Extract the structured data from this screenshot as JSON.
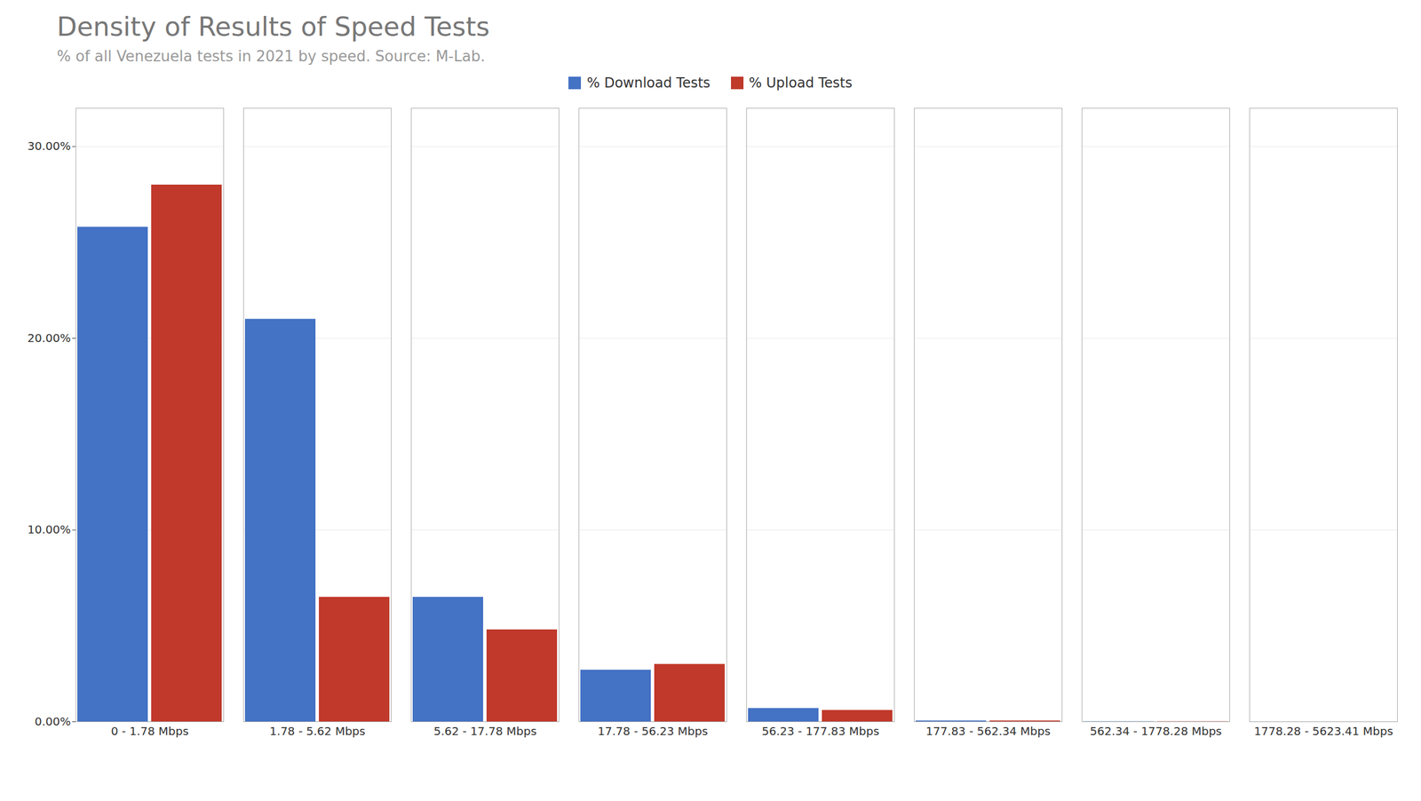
{
  "chart_data": {
    "type": "bar",
    "title": "Density of Results of Speed Tests",
    "subtitle": "% of all Venezuela tests in 2021 by speed. Source: M-Lab.",
    "categories": [
      "0 - 1.78 Mbps",
      "1.78 - 5.62 Mbps",
      "5.62 - 17.78 Mbps",
      "17.78 - 56.23 Mbps",
      "56.23 - 177.83 Mbps",
      "177.83 - 562.34 Mbps",
      "562.34 - 1778.28 Mbps",
      "1778.28 - 5623.41 Mbps"
    ],
    "series": [
      {
        "name": "% Download Tests",
        "color": "#4472C4",
        "values": [
          0.258,
          0.21,
          0.065,
          0.027,
          0.007,
          0.0005,
          0.0001,
          1e-05
        ]
      },
      {
        "name": "% Upload Tests",
        "color": "#C0392B",
        "values": [
          0.28,
          0.065,
          0.048,
          0.03,
          0.006,
          0.0005,
          0.0001,
          1e-05
        ]
      }
    ],
    "ylim": [
      0,
      0.32
    ],
    "yticks": [
      {
        "value": 0.0,
        "label": "0.00%"
      },
      {
        "value": 0.1,
        "label": "10.00%"
      },
      {
        "value": 0.2,
        "label": "20.00%"
      },
      {
        "value": 0.3,
        "label": "30.00%"
      }
    ],
    "grid": true,
    "legend": "top"
  }
}
